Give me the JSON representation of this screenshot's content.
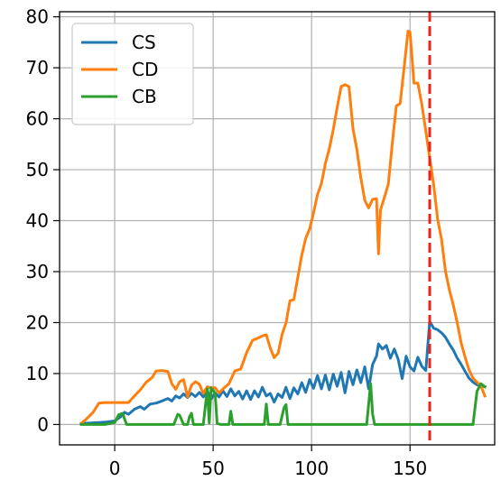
{
  "chart_data": {
    "type": "line",
    "title": "",
    "xlabel": "",
    "ylabel": "",
    "xlim": [
      -28,
      193
    ],
    "ylim": [
      -4,
      81
    ],
    "x_ticks": [
      0,
      50,
      100,
      150
    ],
    "y_ticks": [
      0,
      10,
      20,
      30,
      40,
      50,
      60,
      70,
      80
    ],
    "grid": true,
    "legend_position": "top-left",
    "vertical_line": {
      "x": 160,
      "color": "#e8241c",
      "style": "dashed"
    },
    "series": [
      {
        "name": "CS",
        "color": "#1f77b4",
        "points": [
          [
            -17,
            0.2
          ],
          [
            -12,
            0.3
          ],
          [
            -8,
            0.4
          ],
          [
            -4,
            0.5
          ],
          [
            0,
            0.7
          ],
          [
            3,
            1.5
          ],
          [
            5,
            2.4
          ],
          [
            7,
            2.0
          ],
          [
            10,
            3.0
          ],
          [
            13,
            3.5
          ],
          [
            15,
            3.0
          ],
          [
            18,
            4.0
          ],
          [
            21,
            4.2
          ],
          [
            24,
            4.6
          ],
          [
            27,
            5.1
          ],
          [
            29,
            4.6
          ],
          [
            31,
            5.6
          ],
          [
            33,
            5.2
          ],
          [
            35,
            6.0
          ],
          [
            37,
            5.3
          ],
          [
            39,
            6.1
          ],
          [
            41,
            5.5
          ],
          [
            43,
            6.3
          ],
          [
            45,
            5.4
          ],
          [
            47,
            6.6
          ],
          [
            49,
            5.0
          ],
          [
            51,
            6.2
          ],
          [
            53,
            5.4
          ],
          [
            55,
            6.6
          ],
          [
            57,
            5.5
          ],
          [
            59,
            7.0
          ],
          [
            61,
            5.6
          ],
          [
            63,
            6.5
          ],
          [
            65,
            5.0
          ],
          [
            67,
            6.6
          ],
          [
            69,
            4.9
          ],
          [
            71,
            6.6
          ],
          [
            73,
            5.4
          ],
          [
            75,
            7.3
          ],
          [
            77,
            5.6
          ],
          [
            79,
            6.1
          ],
          [
            81,
            4.4
          ],
          [
            83,
            6.0
          ],
          [
            85,
            5.3
          ],
          [
            87,
            7.3
          ],
          [
            89,
            5.1
          ],
          [
            91,
            7.2
          ],
          [
            93,
            6.0
          ],
          [
            95,
            8.2
          ],
          [
            97,
            6.3
          ],
          [
            99,
            8.8
          ],
          [
            101,
            7.1
          ],
          [
            103,
            9.6
          ],
          [
            105,
            7.0
          ],
          [
            107,
            9.7
          ],
          [
            109,
            6.8
          ],
          [
            111,
            9.9
          ],
          [
            113,
            7.5
          ],
          [
            115,
            10.2
          ],
          [
            117,
            6.2
          ],
          [
            119,
            10.4
          ],
          [
            121,
            7.8
          ],
          [
            123,
            10.7
          ],
          [
            125,
            8.2
          ],
          [
            127,
            11.3
          ],
          [
            129,
            7.0
          ],
          [
            131,
            11.8
          ],
          [
            133,
            13.4
          ],
          [
            134,
            15.8
          ],
          [
            136,
            14.8
          ],
          [
            138,
            15.5
          ],
          [
            140,
            13.0
          ],
          [
            142,
            14.8
          ],
          [
            144,
            12.8
          ],
          [
            146,
            9.0
          ],
          [
            148,
            13.4
          ],
          [
            150,
            11.3
          ],
          [
            152,
            10.5
          ],
          [
            154,
            13.2
          ],
          [
            156,
            11.4
          ],
          [
            158,
            10.6
          ],
          [
            160,
            20.2
          ],
          [
            162,
            18.9
          ],
          [
            164,
            18.6
          ],
          [
            166,
            18.0
          ],
          [
            168,
            17.1
          ],
          [
            170,
            15.8
          ],
          [
            172,
            14.6
          ],
          [
            174,
            13.0
          ],
          [
            176,
            11.8
          ],
          [
            178,
            10.4
          ],
          [
            180,
            9.1
          ],
          [
            182,
            8.3
          ],
          [
            184,
            7.8
          ],
          [
            186,
            7.6
          ],
          [
            188,
            7.4
          ]
        ]
      },
      {
        "name": "CD",
        "color": "#ff7f0e",
        "points": [
          [
            -17,
            0.2
          ],
          [
            -14,
            1.2
          ],
          [
            -11,
            2.4
          ],
          [
            -8,
            4.2
          ],
          [
            -5,
            4.3
          ],
          [
            -2,
            4.3
          ],
          [
            1,
            4.3
          ],
          [
            4,
            4.3
          ],
          [
            7,
            4.3
          ],
          [
            10,
            5.6
          ],
          [
            13,
            6.8
          ],
          [
            16,
            8.3
          ],
          [
            19,
            9.2
          ],
          [
            21,
            10.5
          ],
          [
            24,
            10.6
          ],
          [
            27,
            10.4
          ],
          [
            29,
            8.0
          ],
          [
            31,
            6.9
          ],
          [
            33,
            8.4
          ],
          [
            35,
            8.8
          ],
          [
            37,
            5.4
          ],
          [
            39,
            7.7
          ],
          [
            41,
            8.4
          ],
          [
            43,
            7.9
          ],
          [
            45,
            6.1
          ],
          [
            47,
            7.4
          ],
          [
            49,
            7.2
          ],
          [
            51,
            7.2
          ],
          [
            53,
            6.2
          ],
          [
            55,
            7.0
          ],
          [
            58,
            8.0
          ],
          [
            61,
            10.5
          ],
          [
            64,
            10.9
          ],
          [
            67,
            14.1
          ],
          [
            70,
            16.5
          ],
          [
            73,
            17.0
          ],
          [
            75,
            17.4
          ],
          [
            77,
            17.6
          ],
          [
            79,
            15.0
          ],
          [
            81,
            13.1
          ],
          [
            83,
            14.0
          ],
          [
            85,
            17.7
          ],
          [
            87,
            19.9
          ],
          [
            89,
            24.3
          ],
          [
            91,
            24.5
          ],
          [
            93,
            28.9
          ],
          [
            95,
            33.2
          ],
          [
            97,
            36.5
          ],
          [
            99,
            38.4
          ],
          [
            101,
            41.5
          ],
          [
            103,
            45.1
          ],
          [
            105,
            47.3
          ],
          [
            107,
            51.2
          ],
          [
            109,
            54.1
          ],
          [
            111,
            57.9
          ],
          [
            113,
            62.2
          ],
          [
            115,
            66.3
          ],
          [
            117,
            66.7
          ],
          [
            119,
            66.3
          ],
          [
            121,
            58.1
          ],
          [
            123,
            54.0
          ],
          [
            125,
            48.4
          ],
          [
            127,
            44.0
          ],
          [
            129,
            42.5
          ],
          [
            131,
            44.2
          ],
          [
            133,
            44.3
          ],
          [
            134,
            33.5
          ],
          [
            135,
            42.1
          ],
          [
            137,
            44.6
          ],
          [
            139,
            47.2
          ],
          [
            141,
            55.2
          ],
          [
            143,
            62.5
          ],
          [
            145,
            63.0
          ],
          [
            147,
            70.1
          ],
          [
            149,
            77.2
          ],
          [
            150,
            77.0
          ],
          [
            152,
            67.0
          ],
          [
            154,
            67.0
          ],
          [
            156,
            62.8
          ],
          [
            158,
            57.6
          ],
          [
            160,
            52.3
          ],
          [
            162,
            47.1
          ],
          [
            164,
            40.3
          ],
          [
            166,
            36.4
          ],
          [
            168,
            30.1
          ],
          [
            170,
            26.4
          ],
          [
            172,
            23.4
          ],
          [
            174,
            19.9
          ],
          [
            176,
            16.0
          ],
          [
            178,
            13.2
          ],
          [
            180,
            10.7
          ],
          [
            182,
            9.1
          ],
          [
            184,
            8.3
          ],
          [
            186,
            7.6
          ],
          [
            188,
            5.6
          ]
        ]
      },
      {
        "name": "CB",
        "color": "#2ca02c",
        "points": [
          [
            -17,
            0
          ],
          [
            -5,
            0
          ],
          [
            0,
            0.4
          ],
          [
            2,
            1.9
          ],
          [
            4,
            2.2
          ],
          [
            6,
            0
          ],
          [
            30,
            0
          ],
          [
            32,
            2.0
          ],
          [
            33,
            1.8
          ],
          [
            35,
            0
          ],
          [
            37,
            0
          ],
          [
            38,
            1.5
          ],
          [
            39,
            2.2
          ],
          [
            40,
            0
          ],
          [
            45,
            0
          ],
          [
            47,
            7.0
          ],
          [
            48,
            0.3
          ],
          [
            49,
            7.2
          ],
          [
            51,
            6.2
          ],
          [
            52,
            0.2
          ],
          [
            54,
            0
          ],
          [
            58,
            0
          ],
          [
            59,
            2.6
          ],
          [
            60,
            0
          ],
          [
            76,
            0
          ],
          [
            77,
            4.0
          ],
          [
            78,
            0
          ],
          [
            84,
            0
          ],
          [
            86,
            3.3
          ],
          [
            87,
            3.9
          ],
          [
            88,
            0
          ],
          [
            128,
            0
          ],
          [
            129,
            4.0
          ],
          [
            130,
            8.0
          ],
          [
            131,
            2.0
          ],
          [
            132,
            0
          ],
          [
            182,
            0
          ],
          [
            184,
            6.5
          ],
          [
            186,
            8.0
          ],
          [
            188,
            7.4
          ]
        ]
      }
    ]
  }
}
